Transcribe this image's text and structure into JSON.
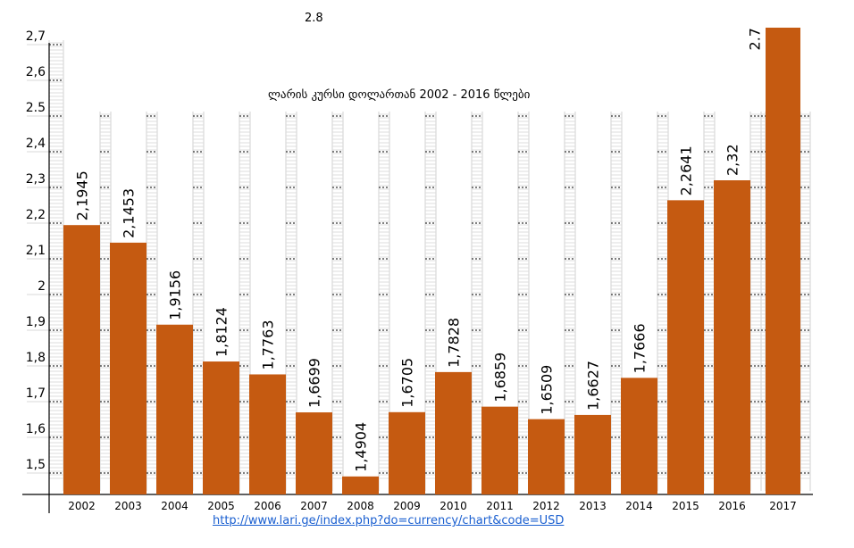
{
  "chart_data": {
    "type": "bar",
    "title": "ლარის კურსი დოლართან  2002 -  2016  წლები",
    "categories": [
      "2002",
      "2003",
      "2004",
      "2005",
      "2006",
      "2007",
      "2008",
      "2009",
      "2010",
      "2011",
      "2012",
      "2013",
      "2014",
      "2015",
      "2016",
      "2017"
    ],
    "values": [
      2.1945,
      2.1453,
      1.9156,
      1.8124,
      1.7763,
      1.6699,
      1.4904,
      1.6705,
      1.7828,
      1.6859,
      1.6509,
      1.6627,
      1.7666,
      2.2641,
      2.32,
      2.7
    ],
    "data_labels": [
      "2,1945",
      "2,1453",
      "1,9156",
      "1,8124",
      "1,7763",
      "1,6699",
      "1,4904",
      "1,6705",
      "1,7828",
      "1,6859",
      "1,6509",
      "1,6627",
      "1,7666",
      "2,2641",
      "2,32",
      "2.7"
    ],
    "y_ticks": [
      "2,7",
      "2,6",
      "2.5",
      "2,4",
      "2,3",
      "2,2",
      "2,1",
      "2",
      "1,9",
      "1,8",
      "1,7",
      "1,6",
      "1,5"
    ],
    "y_tick_values": [
      2.7,
      2.6,
      2.5,
      2.4,
      2.3,
      2.2,
      2.1,
      2.0,
      1.9,
      1.8,
      1.7,
      1.6,
      1.5
    ],
    "extra_label": "2.8",
    "ylim": [
      1.44,
      2.75
    ],
    "bar_color": "#c55a11",
    "grid": true,
    "xlabel": "",
    "ylabel": ""
  },
  "source_url": "http://www.lari.ge/index.php?do=currency/chart&code=USD"
}
